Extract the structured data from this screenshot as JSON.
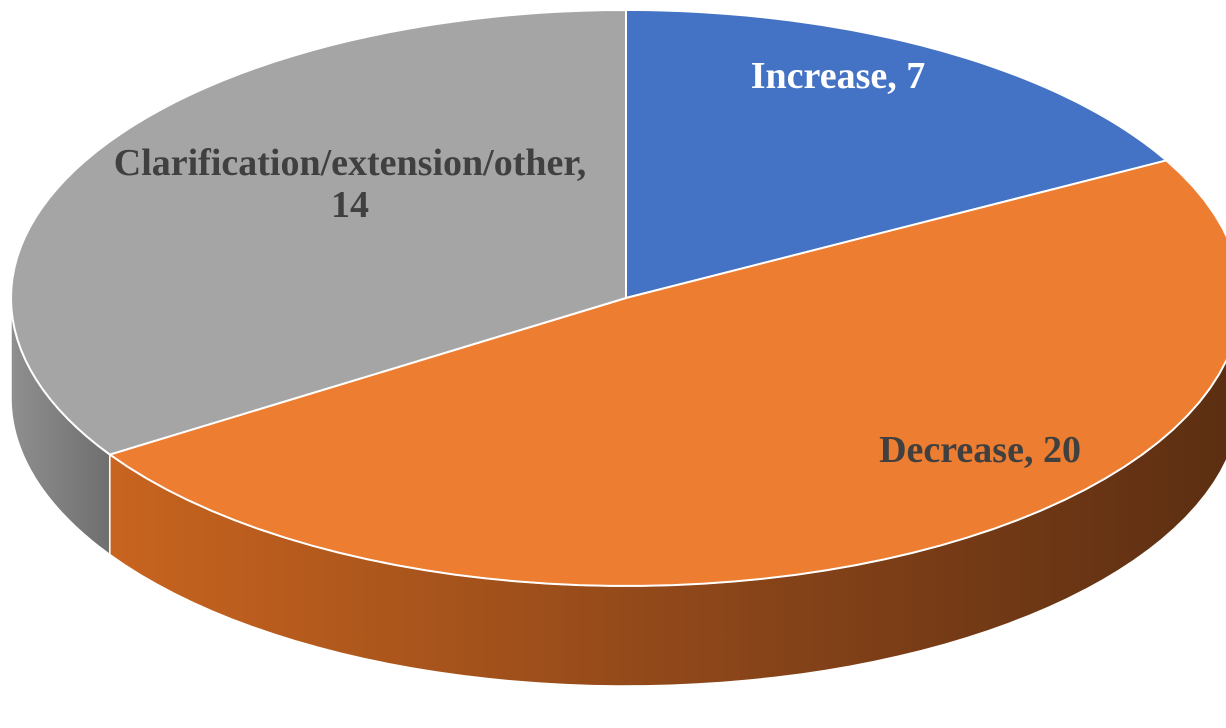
{
  "chart_data": {
    "type": "pie",
    "style": "3d-exploded-ellipse",
    "start_angle": "12 o'clock",
    "direction": "clockwise",
    "categories": [
      "Increase",
      "Decrease",
      "Clarification/extension/other"
    ],
    "values": [
      7,
      20,
      14
    ],
    "data_labels": [
      "Increase, 7",
      "Decrease, 20",
      "Clarification/extension/other, 14"
    ],
    "data_label_lines": [
      [
        "Increase, 7"
      ],
      [
        "Decrease, 20"
      ],
      [
        "Clarification/extension/other,",
        "14"
      ]
    ],
    "colors": [
      "#4472C4",
      "#ED7D31",
      "#A5A5A5"
    ],
    "label_colors": [
      "#FFFFFF",
      "#404040",
      "#404040"
    ],
    "title": "",
    "legend": "none"
  }
}
